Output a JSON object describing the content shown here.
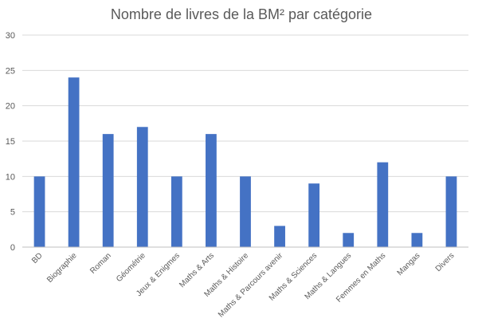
{
  "chart_data": {
    "type": "bar",
    "title": "Nombre de livres de la BM² par catégorie",
    "xlabel": "",
    "ylabel": "",
    "ylim": [
      0,
      30
    ],
    "yticks": [
      0,
      5,
      10,
      15,
      20,
      25,
      30
    ],
    "grid": true,
    "legend": "none",
    "bar_color": "#4472c4",
    "categories": [
      "BD",
      "Biographie",
      "Roman",
      "Géométrie",
      "Jeux & Enigmes",
      "Maths & Arts",
      "Maths & Histoire",
      "Maths & Parcours avenir",
      "Maths & Sciences",
      "Maths & Langues",
      "Femmes en Maths",
      "Mangas",
      "Divers"
    ],
    "values": [
      10,
      24,
      16,
      17,
      10,
      16,
      10,
      3,
      9,
      2,
      12,
      2,
      10
    ]
  }
}
